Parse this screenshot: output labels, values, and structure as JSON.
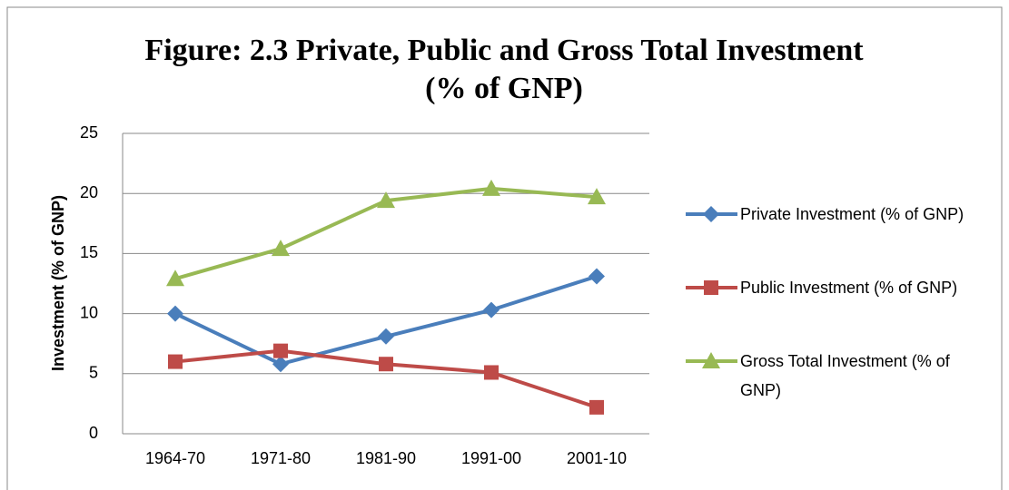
{
  "chart_data": {
    "type": "line",
    "title": [
      "Figure: 2.3 Private, Public and Gross Total Investment",
      "(% of GNP)"
    ],
    "y_label": "Investment (% of GNP)",
    "categories": [
      "1964-70",
      "1971-80",
      "1981-90",
      "1991-00",
      "2001-10"
    ],
    "series": [
      {
        "name": "Private Investment (% of GNP)",
        "color": "#4a7ebb",
        "marker": "diamond",
        "values": [
          10.0,
          5.8,
          8.1,
          10.3,
          13.1
        ]
      },
      {
        "name": "Public Investment (% of GNP)",
        "color": "#be4b48",
        "marker": "square",
        "values": [
          6.0,
          6.9,
          5.8,
          5.1,
          2.2
        ]
      },
      {
        "name": "Gross Total Investment (% of GNP)",
        "color": "#98b954",
        "marker": "triangle",
        "values": [
          12.9,
          15.4,
          19.4,
          20.4,
          19.7
        ]
      }
    ],
    "ylim": [
      0,
      25
    ],
    "yticks": [
      0,
      5,
      10,
      15,
      20,
      25
    ],
    "grid": true,
    "legend": "right"
  }
}
